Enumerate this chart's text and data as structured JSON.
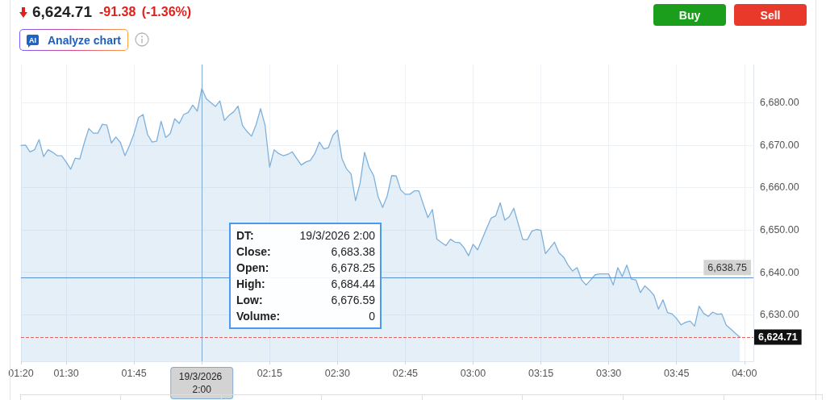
{
  "chart_data": {
    "type": "area",
    "title": "6,624.71",
    "subtitle": "-91.38 (-1.36%)",
    "annotations": [
      "AI",
      "Analyze chart",
      "Buy",
      "Sell",
      "DT:",
      "19/3/2026 2:00",
      "Close:",
      "6,683.38",
      "Open:",
      "6,678.25",
      "High:",
      "6,684.44",
      "Low:",
      "6,676.59",
      "Volume:",
      "0"
    ],
    "color": "#7eb0dc",
    "x": [
      "2026-03-19T01:20",
      "2026-03-19T01:21",
      "2026-03-19T01:22",
      "2026-03-19T01:23",
      "2026-03-19T01:24",
      "2026-03-19T01:25",
      "2026-03-19T01:26",
      "2026-03-19T01:27",
      "2026-03-19T01:28",
      "2026-03-19T01:29",
      "2026-03-19T01:30",
      "2026-03-19T01:31",
      "2026-03-19T01:32",
      "2026-03-19T01:33",
      "2026-03-19T01:34",
      "2026-03-19T01:35",
      "2026-03-19T01:36",
      "2026-03-19T01:37",
      "2026-03-19T01:38",
      "2026-03-19T01:39",
      "2026-03-19T01:40",
      "2026-03-19T01:41",
      "2026-03-19T01:42",
      "2026-03-19T01:43",
      "2026-03-19T01:44",
      "2026-03-19T01:45",
      "2026-03-19T01:46",
      "2026-03-19T01:47",
      "2026-03-19T01:48",
      "2026-03-19T01:49",
      "2026-03-19T01:50",
      "2026-03-19T01:51",
      "2026-03-19T01:52",
      "2026-03-19T01:53",
      "2026-03-19T01:54",
      "2026-03-19T01:55",
      "2026-03-19T01:56",
      "2026-03-19T01:57",
      "2026-03-19T01:58",
      "2026-03-19T01:59",
      "2026-03-19T02:00",
      "2026-03-19T02:01",
      "2026-03-19T02:02",
      "2026-03-19T02:03",
      "2026-03-19T02:04",
      "2026-03-19T02:05",
      "2026-03-19T02:06",
      "2026-03-19T02:07",
      "2026-03-19T02:08",
      "2026-03-19T02:09",
      "2026-03-19T02:10",
      "2026-03-19T02:11",
      "2026-03-19T02:12",
      "2026-03-19T02:13",
      "2026-03-19T02:14",
      "2026-03-19T02:15",
      "2026-03-19T02:16",
      "2026-03-19T02:17",
      "2026-03-19T02:18",
      "2026-03-19T02:19",
      "2026-03-19T02:20",
      "2026-03-19T02:21",
      "2026-03-19T02:22",
      "2026-03-19T02:23",
      "2026-03-19T02:24",
      "2026-03-19T02:25",
      "2026-03-19T02:26",
      "2026-03-19T02:27",
      "2026-03-19T02:28",
      "2026-03-19T02:29",
      "2026-03-19T02:30",
      "2026-03-19T02:31",
      "2026-03-19T02:32",
      "2026-03-19T02:33",
      "2026-03-19T02:34",
      "2026-03-19T02:35",
      "2026-03-19T02:36",
      "2026-03-19T02:37",
      "2026-03-19T02:38",
      "2026-03-19T02:39",
      "2026-03-19T02:40",
      "2026-03-19T02:41",
      "2026-03-19T02:42",
      "2026-03-19T02:43",
      "2026-03-19T02:44",
      "2026-03-19T02:45",
      "2026-03-19T02:46",
      "2026-03-19T02:47",
      "2026-03-19T02:48",
      "2026-03-19T02:49",
      "2026-03-19T02:50",
      "2026-03-19T02:51",
      "2026-03-19T02:52",
      "2026-03-19T02:53",
      "2026-03-19T02:54",
      "2026-03-19T02:55",
      "2026-03-19T02:56",
      "2026-03-19T02:57",
      "2026-03-19T02:58",
      "2026-03-19T02:59",
      "2026-03-19T03:00",
      "2026-03-19T03:01",
      "2026-03-19T03:02",
      "2026-03-19T03:03",
      "2026-03-19T03:04",
      "2026-03-19T03:05",
      "2026-03-19T03:06",
      "2026-03-19T03:07",
      "2026-03-19T03:08",
      "2026-03-19T03:09",
      "2026-03-19T03:10",
      "2026-03-19T03:11",
      "2026-03-19T03:12",
      "2026-03-19T03:13",
      "2026-03-19T03:14",
      "2026-03-19T03:15",
      "2026-03-19T03:16",
      "2026-03-19T03:17",
      "2026-03-19T03:18",
      "2026-03-19T03:19",
      "2026-03-19T03:20",
      "2026-03-19T03:21",
      "2026-03-19T03:22",
      "2026-03-19T03:23",
      "2026-03-19T03:24",
      "2026-03-19T03:25",
      "2026-03-19T03:26",
      "2026-03-19T03:27",
      "2026-03-19T03:28",
      "2026-03-19T03:29",
      "2026-03-19T03:30",
      "2026-03-19T03:31",
      "2026-03-19T03:32",
      "2026-03-19T03:33",
      "2026-03-19T03:34",
      "2026-03-19T03:35",
      "2026-03-19T03:36",
      "2026-03-19T03:37",
      "2026-03-19T03:38",
      "2026-03-19T03:39",
      "2026-03-19T03:40",
      "2026-03-19T03:41",
      "2026-03-19T03:42",
      "2026-03-19T03:43",
      "2026-03-19T03:44",
      "2026-03-19T03:45",
      "2026-03-19T03:46",
      "2026-03-19T03:47",
      "2026-03-19T03:48",
      "2026-03-19T03:49",
      "2026-03-19T03:50",
      "2026-03-19T03:51",
      "2026-03-19T03:52",
      "2026-03-19T03:53",
      "2026-03-19T03:54",
      "2026-03-19T03:55",
      "2026-03-19T03:56",
      "2026-03-19T03:57",
      "2026-03-19T03:58",
      "2026-03-19T03:59"
    ],
    "values": [
      6669.9,
      6670.0,
      6668.4,
      6668.9,
      6671.3,
      6667.3,
      6668.9,
      6668.3,
      6667.5,
      6667.5,
      6666.0,
      6664.3,
      6666.9,
      6666.7,
      6670.5,
      6673.9,
      6672.8,
      6672.8,
      6674.9,
      6674.7,
      6670.5,
      6671.9,
      6670.6,
      6667.5,
      6669.9,
      6672.7,
      6676.5,
      6677.2,
      6672.5,
      6670.7,
      6670.9,
      6675.6,
      6671.8,
      6672.7,
      6676.2,
      6675.1,
      6677.2,
      6677.7,
      6679.4,
      6678.0,
      6683.38,
      6680.9,
      6680.0,
      6679.1,
      6680.4,
      6675.8,
      6677.0,
      6677.8,
      6679.2,
      6674.6,
      6673.2,
      6672.1,
      6674.8,
      6678.6,
      6674.6,
      6664.8,
      6668.9,
      6668.0,
      6667.5,
      6667.8,
      6668.4,
      6666.8,
      6665.3,
      6666.0,
      6666.4,
      6668.0,
      6670.7,
      6669.1,
      6669.4,
      6672.3,
      6673.5,
      6666.8,
      6664.4,
      6663.2,
      6656.9,
      6661.0,
      6668.3,
      6664.8,
      6662.8,
      6657.8,
      6655.3,
      6658.0,
      6662.8,
      6662.7,
      6659.4,
      6658.4,
      6658.4,
      6659.2,
      6659.2,
      6656.0,
      6652.9,
      6654.8,
      6647.8,
      6647.0,
      6646.3,
      6647.8,
      6647.1,
      6647.0,
      6645.8,
      6643.9,
      6646.6,
      6645.3,
      6647.8,
      6650.4,
      6652.8,
      6653.3,
      6656.4,
      6652.3,
      6653.1,
      6655.1,
      6651.4,
      6647.7,
      6647.7,
      6649.7,
      6650.1,
      6649.9,
      6644.4,
      6645.7,
      6647.1,
      6644.6,
      6643.6,
      6641.7,
      6640.3,
      6641.1,
      6638.2,
      6637.0,
      6638.2,
      6639.4,
      6639.6,
      6639.6,
      6639.6,
      6637.0,
      6641.1,
      6639.0,
      6641.7,
      6638.4,
      6638.2,
      6635.2,
      6636.8,
      6635.8,
      6634.6,
      6631.3,
      6633.5,
      6630.5,
      6630.2,
      6629.1,
      6627.6,
      6628.2,
      6628.5,
      6627.3,
      6632.0,
      6630.3,
      6629.6,
      6630.6,
      6630.1,
      6630.2,
      6627.5,
      6626.6,
      6625.6,
      6624.71
    ],
    "xlim": [
      "2026-03-19T01:20",
      "2026-03-19T04:02"
    ],
    "xticks": [
      {
        "value": "2026-03-19T01:20",
        "label": "01:20"
      },
      {
        "value": "2026-03-19T01:30",
        "label": "01:30"
      },
      {
        "value": "2026-03-19T01:45",
        "label": "01:45"
      },
      {
        "value": "2026-03-19T02:00",
        "label": null
      },
      {
        "value": "2026-03-19T02:15",
        "label": "02:15"
      },
      {
        "value": "2026-03-19T02:30",
        "label": "02:30"
      },
      {
        "value": "2026-03-19T02:45",
        "label": "02:45"
      },
      {
        "value": "2026-03-19T03:00",
        "label": "03:00"
      },
      {
        "value": "2026-03-19T03:15",
        "label": "03:15"
      },
      {
        "value": "2026-03-19T03:30",
        "label": "03:30"
      },
      {
        "value": "2026-03-19T03:45",
        "label": "03:45"
      },
      {
        "value": "2026-03-19T04:00",
        "label": "04:00"
      }
    ],
    "ylim": [
      6619,
      6689
    ],
    "yticks": [
      {
        "value": 6630,
        "label": "6,630.00"
      },
      {
        "value": 6640,
        "label": "6,640.00"
      },
      {
        "value": 6650,
        "label": "6,650.00"
      },
      {
        "value": 6660,
        "label": "6,660.00"
      },
      {
        "value": 6670,
        "label": "6,670.00"
      },
      {
        "value": 6680,
        "label": "6,680.00"
      }
    ],
    "grid": true,
    "ref_lines": [
      {
        "axis": "x",
        "value": "2026-03-19T02:00",
        "label": "19/3/2026 2:00",
        "color": "#82abd3"
      },
      {
        "axis": "y",
        "value": 6638.75,
        "label": "6,638.75",
        "color": "#5b8fd6"
      },
      {
        "axis": "y",
        "value": 6624.71,
        "label": "6,624.71",
        "color": "#e06666",
        "line_style": "dashed"
      }
    ]
  }
}
